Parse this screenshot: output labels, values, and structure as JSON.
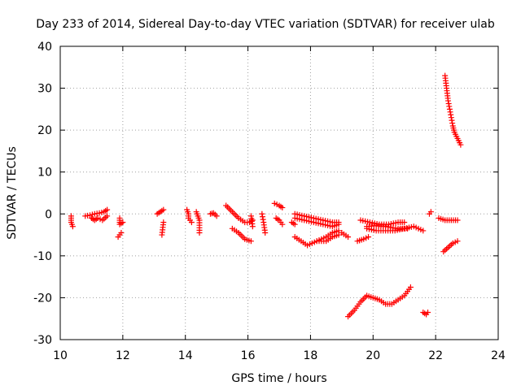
{
  "chart_data": {
    "type": "scatter",
    "title": "Day 233 of 2014, Sidereal Day-to-day VTEC variation (SDTVAR) for receiver ulab",
    "xlabel": "GPS time / hours",
    "ylabel": "SDTVAR / TECUs",
    "xlim": [
      10,
      24
    ],
    "ylim": [
      -30,
      40
    ],
    "xticks": [
      10,
      12,
      14,
      16,
      18,
      20,
      22,
      24
    ],
    "yticks": [
      -30,
      -20,
      -10,
      0,
      10,
      20,
      30,
      40
    ],
    "grid": true,
    "marker": "+",
    "colors": {
      "series": "#ff0000",
      "grid": "#a0a0a0",
      "axis": "#000000"
    },
    "segments": [
      {
        "name": "s01",
        "x": [
          10.35,
          10.35,
          10.4
        ],
        "y": [
          -0.5,
          -2,
          -3
        ]
      },
      {
        "name": "s02",
        "x": [
          10.8,
          10.95,
          11.1,
          11.25,
          11.4,
          11.5
        ],
        "y": [
          -0.5,
          -0.3,
          0,
          0.2,
          0.5,
          1
        ]
      },
      {
        "name": "s03",
        "x": [
          11.0,
          11.1,
          11.2,
          11.35,
          11.5
        ],
        "y": [
          -1,
          -1.5,
          -1,
          -1.5,
          -0.5
        ]
      },
      {
        "name": "s04",
        "x": [
          11.9,
          11.9,
          12.0
        ],
        "y": [
          -1,
          -2.5,
          -2
        ]
      },
      {
        "name": "s05",
        "x": [
          11.85,
          11.9,
          11.95
        ],
        "y": [
          -5.5,
          -5,
          -4.5
        ]
      },
      {
        "name": "s06",
        "x": [
          13.1,
          13.2,
          13.3
        ],
        "y": [
          0,
          0.5,
          1
        ]
      },
      {
        "name": "s07",
        "x": [
          13.3,
          13.25
        ],
        "y": [
          -2,
          -5
        ]
      },
      {
        "name": "s08",
        "x": [
          14.05,
          14.1,
          14.1,
          14.2
        ],
        "y": [
          1,
          0,
          -1,
          -2
        ]
      },
      {
        "name": "s09",
        "x": [
          14.35,
          14.4,
          14.45,
          14.45
        ],
        "y": [
          0.5,
          -0.5,
          -1.5,
          -4.5
        ]
      },
      {
        "name": "s10",
        "x": [
          14.8,
          14.9,
          15.0
        ],
        "y": [
          0,
          0.2,
          -0.5
        ]
      },
      {
        "name": "s11",
        "x": [
          15.3,
          15.5,
          15.7,
          15.9,
          16.05,
          16.15
        ],
        "y": [
          2,
          0.5,
          -1,
          -2,
          -2,
          -1.5
        ]
      },
      {
        "name": "s12",
        "x": [
          15.5,
          15.7,
          15.9,
          16.1
        ],
        "y": [
          -3.5,
          -4.5,
          -6,
          -6.5
        ]
      },
      {
        "name": "s13",
        "x": [
          16.1,
          16.15
        ],
        "y": [
          -0.5,
          -3
        ]
      },
      {
        "name": "s14",
        "x": [
          16.45,
          16.5,
          16.55
        ],
        "y": [
          0,
          -2,
          -4.5
        ]
      },
      {
        "name": "s15",
        "x": [
          16.85,
          17.0,
          17.1
        ],
        "y": [
          2.5,
          2,
          1.5
        ]
      },
      {
        "name": "s16",
        "x": [
          16.9,
          17.0,
          17.1
        ],
        "y": [
          -1,
          -1.5,
          -2.5
        ]
      },
      {
        "name": "s17",
        "x": [
          17.4,
          17.5
        ],
        "y": [
          -2,
          -2.5
        ]
      },
      {
        "name": "s18",
        "x": [
          17.5,
          17.8,
          18.1,
          18.4,
          18.7,
          18.9
        ],
        "y": [
          0,
          -0.5,
          -1,
          -1.5,
          -2,
          -2
        ]
      },
      {
        "name": "s19",
        "x": [
          17.5,
          17.8,
          18.1,
          18.4,
          18.7,
          18.9
        ],
        "y": [
          -1,
          -1.5,
          -2,
          -2.5,
          -3,
          -2.5
        ]
      },
      {
        "name": "s20",
        "x": [
          17.5,
          17.7,
          17.9,
          18.2,
          18.5,
          18.7,
          18.9
        ],
        "y": [
          -5.5,
          -6.5,
          -7.5,
          -6.5,
          -6.5,
          -5.5,
          -5
        ]
      },
      {
        "name": "s21",
        "x": [
          18.2,
          18.5,
          18.7,
          18.9
        ],
        "y": [
          -6.5,
          -5.5,
          -4.5,
          -4
        ]
      },
      {
        "name": "s22",
        "x": [
          19.0,
          19.2
        ],
        "y": [
          -4.5,
          -5.5
        ]
      },
      {
        "name": "s23",
        "x": [
          19.5,
          19.7,
          19.85
        ],
        "y": [
          -6.5,
          -6,
          -5.5
        ]
      },
      {
        "name": "s24",
        "x": [
          19.6,
          19.9,
          20.2,
          20.5,
          20.8,
          21.0
        ],
        "y": [
          -1.5,
          -2,
          -2.5,
          -2.5,
          -2,
          -2
        ]
      },
      {
        "name": "s25",
        "x": [
          19.8,
          20.1,
          20.4,
          20.7,
          21.0,
          21.3,
          21.6
        ],
        "y": [
          -3.5,
          -4,
          -4,
          -4,
          -3.5,
          -3,
          -4
        ]
      },
      {
        "name": "s26",
        "x": [
          19.8,
          20.1,
          20.4,
          20.8,
          21.1
        ],
        "y": [
          -3,
          -2.8,
          -3,
          -3.5,
          -3.5
        ]
      },
      {
        "name": "s27",
        "x": [
          19.2,
          19.4,
          19.6,
          19.8,
          20.0,
          20.2,
          20.4,
          20.6,
          20.8,
          21.0,
          21.2
        ],
        "y": [
          -24.5,
          -23,
          -21,
          -19.5,
          -20,
          -20.5,
          -21.5,
          -21.5,
          -20.5,
          -19.5,
          -17.5
        ]
      },
      {
        "name": "s28",
        "x": [
          21.6,
          21.7,
          21.75
        ],
        "y": [
          -23.5,
          -24,
          -23.5
        ]
      },
      {
        "name": "s29",
        "x": [
          21.8,
          21.85
        ],
        "y": [
          0,
          0.5
        ]
      },
      {
        "name": "s30",
        "x": [
          22.1,
          22.3,
          22.5,
          22.7
        ],
        "y": [
          -1,
          -1.5,
          -1.5,
          -1.5
        ]
      },
      {
        "name": "s31",
        "x": [
          22.25,
          22.4,
          22.55,
          22.7
        ],
        "y": [
          -9,
          -8,
          -7,
          -6.5
        ]
      },
      {
        "name": "s32",
        "x": [
          22.3,
          22.35,
          22.4,
          22.45,
          22.5,
          22.55,
          22.6,
          22.7,
          22.8
        ],
        "y": [
          33,
          30,
          27,
          25,
          23,
          21,
          19.5,
          18,
          16.5
        ]
      }
    ]
  }
}
